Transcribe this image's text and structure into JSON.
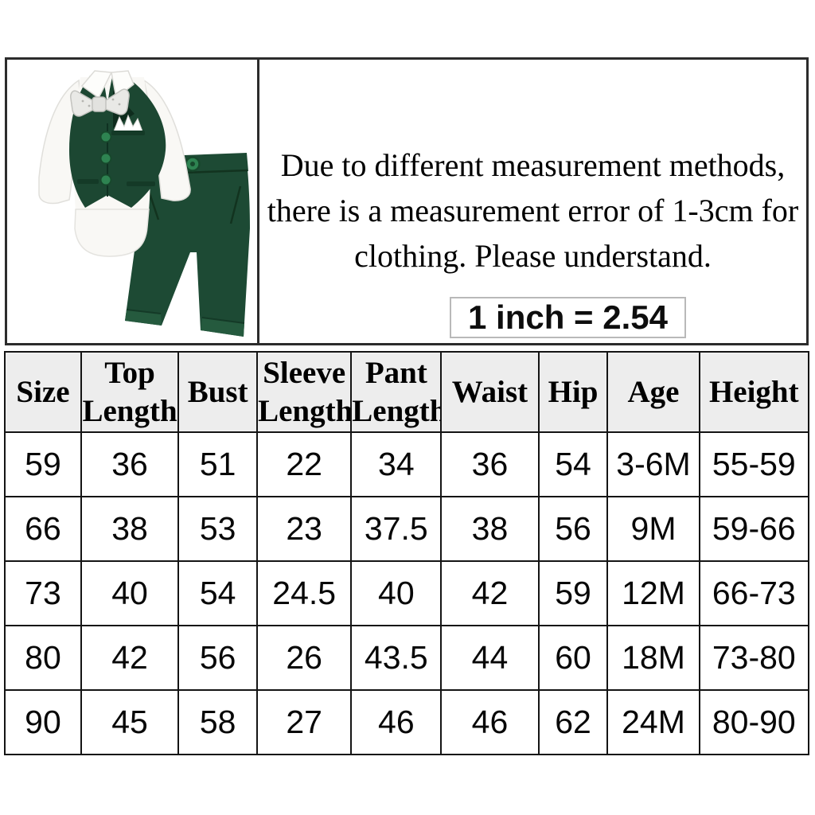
{
  "notice": {
    "line1": "Due to different measurement methods,",
    "line2": "there is a measurement error of 1-3cm for",
    "line3": "clothing. Please understand."
  },
  "conversion": {
    "label": "1 inch = 2.54"
  },
  "product_photo": {
    "description": "baby gentleman outfit set: white long-sleeve bodysuit shirt with bow tie, dark green vest with pocket square, dark green pants",
    "colors": {
      "vest_green": "#1c4732",
      "vest_dark": "#0e2c1d",
      "pants_green": "#1d4a34",
      "pants_cuff": "#255a3e",
      "button_green": "#2e8351",
      "button_ring": "#17482c",
      "shirt_white": "#f9f8f5",
      "bowtie_gray": "#e9e9e6"
    }
  },
  "size_table": {
    "headers": [
      "Size",
      "Top Length",
      "Bust",
      "Sleeve Length",
      "Pant Length",
      "Waist",
      "Hip",
      "Age",
      "Height"
    ],
    "rows": [
      [
        "59",
        "36",
        "51",
        "22",
        "34",
        "36",
        "54",
        "3-6M",
        "55-59"
      ],
      [
        "66",
        "38",
        "53",
        "23",
        "37.5",
        "38",
        "56",
        "9M",
        "59-66"
      ],
      [
        "73",
        "40",
        "54",
        "24.5",
        "40",
        "42",
        "59",
        "12M",
        "66-73"
      ],
      [
        "80",
        "42",
        "56",
        "26",
        "43.5",
        "44",
        "60",
        "18M",
        "73-80"
      ],
      [
        "90",
        "45",
        "58",
        "27",
        "46",
        "46",
        "62",
        "24M",
        "80-90"
      ]
    ],
    "style": {
      "header_bg": "#ededed",
      "border_color": "#141414"
    }
  }
}
